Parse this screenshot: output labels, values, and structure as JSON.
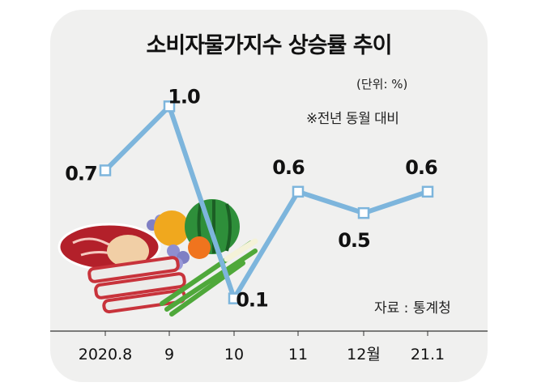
{
  "chart_data": {
    "type": "line",
    "title": "소비자물가지수 상승률 추이",
    "unit_label": "(단위: %)",
    "note": "※전년 동월 대비",
    "source": "자료 : 통계청",
    "categories": [
      "2020.8",
      "9",
      "10",
      "11",
      "12월",
      "21.1"
    ],
    "values": [
      0.7,
      1.0,
      0.1,
      0.6,
      0.5,
      0.6
    ],
    "data_labels": [
      "0.7",
      "1.0",
      "0.1",
      "0.6",
      "0.5",
      "0.6"
    ],
    "ylim": [
      0.0,
      1.1
    ],
    "grid": false,
    "line_color": "#7db5dc"
  }
}
